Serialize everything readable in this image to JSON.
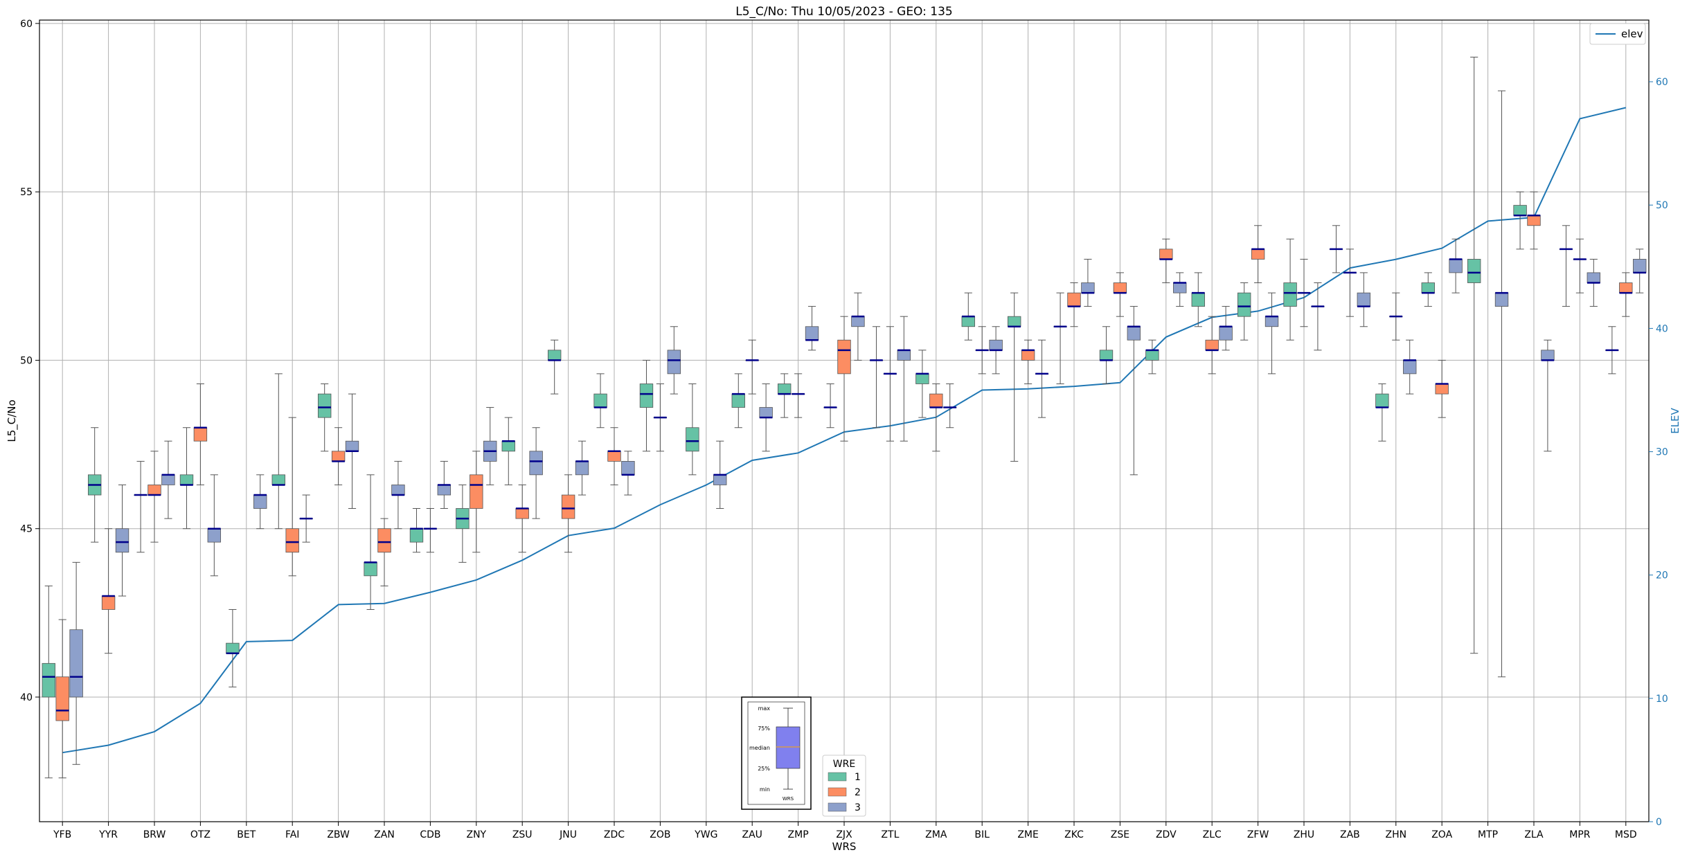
{
  "chart_data": {
    "type": "box+line",
    "title": "L5_C/No: Thu 10/05/2023 - GEO: 135",
    "xlabel": "WRS",
    "ylabel": "L5_C/No",
    "ylabel_right": "ELEV",
    "ylim": [
      36.3,
      60.1
    ],
    "ylim_right": [
      0,
      65
    ],
    "yticks": [
      40,
      45,
      50,
      55,
      60
    ],
    "yticks_right": [
      0,
      10,
      20,
      30,
      40,
      50,
      60
    ],
    "grid": true,
    "categories": [
      "YFB",
      "YYR",
      "BRW",
      "OTZ",
      "BET",
      "FAI",
      "ZBW",
      "ZAN",
      "CDB",
      "ZNY",
      "ZSU",
      "JNU",
      "ZDC",
      "ZOB",
      "YWG",
      "ZAU",
      "ZMP",
      "ZJX",
      "ZTL",
      "ZMA",
      "BIL",
      "ZME",
      "ZKC",
      "ZSE",
      "ZDV",
      "ZLC",
      "ZFW",
      "ZHU",
      "ZAB",
      "ZHN",
      "ZOA",
      "MTP",
      "ZLA",
      "MPR",
      "MSD"
    ],
    "elev": {
      "name": "elev",
      "color": "#1f77b4",
      "values": [
        5.6,
        6.2,
        7.3,
        9.6,
        14.6,
        14.7,
        17.6,
        17.7,
        18.6,
        19.6,
        21.2,
        23.2,
        23.8,
        25.7,
        27.3,
        29.3,
        29.9,
        31.6,
        32.1,
        32.8,
        35.0,
        35.1,
        35.3,
        35.6,
        39.3,
        40.9,
        41.4,
        42.5,
        44.9,
        45.6,
        46.5,
        48.7,
        49.0,
        57.0,
        57.9
      ]
    },
    "wre_colors": {
      "1": "#66c2a5",
      "2": "#fc8d62",
      "3": "#8da0cb"
    },
    "boxes": [
      {
        "station": "YFB",
        "wre": "1",
        "min": 37.6,
        "q1": 40.0,
        "median": 40.6,
        "q3": 41.0,
        "max": 43.3
      },
      {
        "station": "YFB",
        "wre": "2",
        "min": 37.6,
        "q1": 39.3,
        "median": 39.6,
        "q3": 40.6,
        "max": 42.3
      },
      {
        "station": "YFB",
        "wre": "3",
        "min": 38.0,
        "q1": 40.0,
        "median": 40.6,
        "q3": 42.0,
        "max": 44.0
      },
      {
        "station": "YYR",
        "wre": "1",
        "min": 44.6,
        "q1": 46.0,
        "median": 46.3,
        "q3": 46.6,
        "max": 48.0
      },
      {
        "station": "YYR",
        "wre": "2",
        "min": 41.3,
        "q1": 42.6,
        "median": 43.0,
        "q3": 43.0,
        "max": 45.0
      },
      {
        "station": "YYR",
        "wre": "3",
        "min": 43.0,
        "q1": 44.3,
        "median": 44.6,
        "q3": 45.0,
        "max": 46.3
      },
      {
        "station": "BRW",
        "wre": "1",
        "min": 44.3,
        "q1": 46.0,
        "median": 46.0,
        "q3": 46.0,
        "max": 47.0
      },
      {
        "station": "BRW",
        "wre": "2",
        "min": 44.6,
        "q1": 46.0,
        "median": 46.0,
        "q3": 46.3,
        "max": 47.3
      },
      {
        "station": "BRW",
        "wre": "3",
        "min": 45.3,
        "q1": 46.3,
        "median": 46.6,
        "q3": 46.6,
        "max": 47.6
      },
      {
        "station": "OTZ",
        "wre": "1",
        "min": 45.0,
        "q1": 46.3,
        "median": 46.3,
        "q3": 46.6,
        "max": 48.0
      },
      {
        "station": "OTZ",
        "wre": "2",
        "min": 46.3,
        "q1": 47.6,
        "median": 48.0,
        "q3": 48.0,
        "max": 49.3
      },
      {
        "station": "OTZ",
        "wre": "3",
        "min": 43.6,
        "q1": 44.6,
        "median": 45.0,
        "q3": 45.0,
        "max": 46.6
      },
      {
        "station": "BET",
        "wre": "1",
        "min": 40.3,
        "q1": 41.3,
        "median": 41.3,
        "q3": 41.6,
        "max": 42.6
      },
      {
        "station": "BET",
        "wre": "2",
        "min": null,
        "q1": null,
        "median": null,
        "q3": null,
        "max": null
      },
      {
        "station": "BET",
        "wre": "3",
        "min": 45.0,
        "q1": 45.6,
        "median": 46.0,
        "q3": 46.0,
        "max": 46.6
      },
      {
        "station": "FAI",
        "wre": "1",
        "min": 45.0,
        "q1": 46.3,
        "median": 46.3,
        "q3": 46.6,
        "max": 49.6
      },
      {
        "station": "FAI",
        "wre": "2",
        "min": 43.6,
        "q1": 44.3,
        "median": 44.6,
        "q3": 45.0,
        "max": 48.3
      },
      {
        "station": "FAI",
        "wre": "3",
        "min": 44.6,
        "q1": 45.3,
        "median": 45.3,
        "q3": 45.3,
        "max": 46.0
      },
      {
        "station": "ZBW",
        "wre": "1",
        "min": 47.3,
        "q1": 48.3,
        "median": 48.6,
        "q3": 49.0,
        "max": 49.3
      },
      {
        "station": "ZBW",
        "wre": "2",
        "min": 46.3,
        "q1": 47.0,
        "median": 47.0,
        "q3": 47.3,
        "max": 48.0
      },
      {
        "station": "ZBW",
        "wre": "3",
        "min": 45.6,
        "q1": 47.3,
        "median": 47.3,
        "q3": 47.6,
        "max": 49.0
      },
      {
        "station": "ZAN",
        "wre": "1",
        "min": 42.6,
        "q1": 43.6,
        "median": 44.0,
        "q3": 44.0,
        "max": 46.6
      },
      {
        "station": "ZAN",
        "wre": "2",
        "min": 43.3,
        "q1": 44.3,
        "median": 44.6,
        "q3": 45.0,
        "max": 45.3
      },
      {
        "station": "ZAN",
        "wre": "3",
        "min": 45.0,
        "q1": 46.0,
        "median": 46.0,
        "q3": 46.3,
        "max": 47.0
      },
      {
        "station": "CDB",
        "wre": "1",
        "min": 44.3,
        "q1": 44.6,
        "median": 45.0,
        "q3": 45.0,
        "max": 45.6
      },
      {
        "station": "CDB",
        "wre": "2",
        "min": 44.3,
        "q1": 45.0,
        "median": 45.0,
        "q3": 45.0,
        "max": 45.6
      },
      {
        "station": "CDB",
        "wre": "3",
        "min": 45.6,
        "q1": 46.0,
        "median": 46.3,
        "q3": 46.3,
        "max": 47.0
      },
      {
        "station": "ZNY",
        "wre": "1",
        "min": 44.0,
        "q1": 45.0,
        "median": 45.3,
        "q3": 45.6,
        "max": 46.3
      },
      {
        "station": "ZNY",
        "wre": "2",
        "min": 44.3,
        "q1": 45.6,
        "median": 46.3,
        "q3": 46.6,
        "max": 47.3
      },
      {
        "station": "ZNY",
        "wre": "3",
        "min": 46.3,
        "q1": 47.0,
        "median": 47.3,
        "q3": 47.6,
        "max": 48.6
      },
      {
        "station": "ZSU",
        "wre": "1",
        "min": 46.3,
        "q1": 47.3,
        "median": 47.6,
        "q3": 47.6,
        "max": 48.3
      },
      {
        "station": "ZSU",
        "wre": "2",
        "min": 44.3,
        "q1": 45.3,
        "median": 45.6,
        "q3": 45.6,
        "max": 46.3
      },
      {
        "station": "ZSU",
        "wre": "3",
        "min": 45.3,
        "q1": 46.6,
        "median": 47.0,
        "q3": 47.3,
        "max": 48.0
      },
      {
        "station": "JNU",
        "wre": "1",
        "min": 49.0,
        "q1": 50.0,
        "median": 50.0,
        "q3": 50.3,
        "max": 50.6
      },
      {
        "station": "JNU",
        "wre": "2",
        "min": 44.3,
        "q1": 45.3,
        "median": 45.6,
        "q3": 46.0,
        "max": 46.6
      },
      {
        "station": "JNU",
        "wre": "3",
        "min": 46.0,
        "q1": 46.6,
        "median": 47.0,
        "q3": 47.0,
        "max": 47.6
      },
      {
        "station": "ZDC",
        "wre": "1",
        "min": 48.0,
        "q1": 48.6,
        "median": 48.6,
        "q3": 49.0,
        "max": 49.6
      },
      {
        "station": "ZDC",
        "wre": "2",
        "min": 46.3,
        "q1": 47.0,
        "median": 47.3,
        "q3": 47.3,
        "max": 48.0
      },
      {
        "station": "ZDC",
        "wre": "3",
        "min": 46.0,
        "q1": 46.6,
        "median": 46.6,
        "q3": 47.0,
        "max": 47.3
      },
      {
        "station": "ZOB",
        "wre": "1",
        "min": 47.3,
        "q1": 48.6,
        "median": 49.0,
        "q3": 49.3,
        "max": 50.0
      },
      {
        "station": "ZOB",
        "wre": "2",
        "min": 47.3,
        "q1": 48.3,
        "median": 48.3,
        "q3": 48.3,
        "max": 49.3
      },
      {
        "station": "ZOB",
        "wre": "3",
        "min": 49.0,
        "q1": 49.6,
        "median": 50.0,
        "q3": 50.3,
        "max": 51.0
      },
      {
        "station": "YWG",
        "wre": "1",
        "min": 46.6,
        "q1": 47.3,
        "median": 47.6,
        "q3": 48.0,
        "max": 49.3
      },
      {
        "station": "YWG",
        "wre": "2",
        "min": null,
        "q1": null,
        "median": null,
        "q3": null,
        "max": null
      },
      {
        "station": "YWG",
        "wre": "3",
        "min": 45.6,
        "q1": 46.3,
        "median": 46.6,
        "q3": 46.6,
        "max": 47.6
      },
      {
        "station": "ZAU",
        "wre": "1",
        "min": 48.0,
        "q1": 48.6,
        "median": 49.0,
        "q3": 49.0,
        "max": 49.6
      },
      {
        "station": "ZAU",
        "wre": "2",
        "min": 49.0,
        "q1": 50.0,
        "median": 50.0,
        "q3": 50.0,
        "max": 50.6
      },
      {
        "station": "ZAU",
        "wre": "3",
        "min": 47.3,
        "q1": 48.3,
        "median": 48.3,
        "q3": 48.6,
        "max": 49.3
      },
      {
        "station": "ZMP",
        "wre": "1",
        "min": 48.3,
        "q1": 49.0,
        "median": 49.0,
        "q3": 49.3,
        "max": 49.6
      },
      {
        "station": "ZMP",
        "wre": "2",
        "min": 48.3,
        "q1": 49.0,
        "median": 49.0,
        "q3": 49.0,
        "max": 49.6
      },
      {
        "station": "ZMP",
        "wre": "3",
        "min": 50.3,
        "q1": 50.6,
        "median": 50.6,
        "q3": 51.0,
        "max": 51.6
      },
      {
        "station": "ZJX",
        "wre": "1",
        "min": 48.0,
        "q1": 48.6,
        "median": 48.6,
        "q3": 48.6,
        "max": 49.3
      },
      {
        "station": "ZJX",
        "wre": "2",
        "min": 47.6,
        "q1": 49.6,
        "median": 50.3,
        "q3": 50.6,
        "max": 51.3
      },
      {
        "station": "ZJX",
        "wre": "3",
        "min": 50.0,
        "q1": 51.0,
        "median": 51.3,
        "q3": 51.3,
        "max": 52.0
      },
      {
        "station": "ZTL",
        "wre": "1",
        "min": 48.0,
        "q1": 50.0,
        "median": 50.0,
        "q3": 50.0,
        "max": 51.0
      },
      {
        "station": "ZTL",
        "wre": "2",
        "min": 47.6,
        "q1": 49.6,
        "median": 49.6,
        "q3": 49.6,
        "max": 51.0
      },
      {
        "station": "ZTL",
        "wre": "3",
        "min": 47.6,
        "q1": 50.0,
        "median": 50.3,
        "q3": 50.3,
        "max": 51.3
      },
      {
        "station": "ZMA",
        "wre": "1",
        "min": 48.3,
        "q1": 49.3,
        "median": 49.6,
        "q3": 49.6,
        "max": 50.3
      },
      {
        "station": "ZMA",
        "wre": "2",
        "min": 47.3,
        "q1": 48.6,
        "median": 48.6,
        "q3": 49.0,
        "max": 49.3
      },
      {
        "station": "ZMA",
        "wre": "3",
        "min": 48.0,
        "q1": 48.6,
        "median": 48.6,
        "q3": 48.6,
        "max": 49.3
      },
      {
        "station": "BIL",
        "wre": "1",
        "min": 50.6,
        "q1": 51.0,
        "median": 51.3,
        "q3": 51.3,
        "max": 52.0
      },
      {
        "station": "BIL",
        "wre": "2",
        "min": 49.6,
        "q1": 50.3,
        "median": 50.3,
        "q3": 50.3,
        "max": 51.0
      },
      {
        "station": "BIL",
        "wre": "3",
        "min": 49.6,
        "q1": 50.3,
        "median": 50.3,
        "q3": 50.6,
        "max": 51.0
      },
      {
        "station": "ZME",
        "wre": "1",
        "min": 47.0,
        "q1": 51.0,
        "median": 51.0,
        "q3": 51.3,
        "max": 52.0
      },
      {
        "station": "ZME",
        "wre": "2",
        "min": 49.3,
        "q1": 50.0,
        "median": 50.3,
        "q3": 50.3,
        "max": 50.6
      },
      {
        "station": "ZME",
        "wre": "3",
        "min": 48.3,
        "q1": 49.6,
        "median": 49.6,
        "q3": 49.6,
        "max": 50.6
      },
      {
        "station": "ZKC",
        "wre": "1",
        "min": 49.3,
        "q1": 51.0,
        "median": 51.0,
        "q3": 51.0,
        "max": 52.0
      },
      {
        "station": "ZKC",
        "wre": "2",
        "min": 51.0,
        "q1": 51.6,
        "median": 51.6,
        "q3": 52.0,
        "max": 52.3
      },
      {
        "station": "ZKC",
        "wre": "3",
        "min": 51.6,
        "q1": 52.0,
        "median": 52.0,
        "q3": 52.3,
        "max": 53.0
      },
      {
        "station": "ZSE",
        "wre": "1",
        "min": 49.3,
        "q1": 50.0,
        "median": 50.0,
        "q3": 50.3,
        "max": 51.0
      },
      {
        "station": "ZSE",
        "wre": "2",
        "min": 51.3,
        "q1": 52.0,
        "median": 52.0,
        "q3": 52.3,
        "max": 52.6
      },
      {
        "station": "ZSE",
        "wre": "3",
        "min": 46.6,
        "q1": 50.6,
        "median": 51.0,
        "q3": 51.0,
        "max": 51.6
      },
      {
        "station": "ZDV",
        "wre": "1",
        "min": 49.6,
        "q1": 50.0,
        "median": 50.3,
        "q3": 50.3,
        "max": 50.6
      },
      {
        "station": "ZDV",
        "wre": "2",
        "min": 52.3,
        "q1": 53.0,
        "median": 53.0,
        "q3": 53.3,
        "max": 53.6
      },
      {
        "station": "ZDV",
        "wre": "3",
        "min": 51.6,
        "q1": 52.0,
        "median": 52.3,
        "q3": 52.3,
        "max": 52.6
      },
      {
        "station": "ZLC",
        "wre": "1",
        "min": 51.0,
        "q1": 51.6,
        "median": 52.0,
        "q3": 52.0,
        "max": 52.6
      },
      {
        "station": "ZLC",
        "wre": "2",
        "min": 49.6,
        "q1": 50.3,
        "median": 50.3,
        "q3": 50.6,
        "max": 51.3
      },
      {
        "station": "ZLC",
        "wre": "3",
        "min": 50.3,
        "q1": 50.6,
        "median": 51.0,
        "q3": 51.0,
        "max": 51.6
      },
      {
        "station": "ZFW",
        "wre": "1",
        "min": 50.6,
        "q1": 51.3,
        "median": 51.6,
        "q3": 52.0,
        "max": 52.3
      },
      {
        "station": "ZFW",
        "wre": "2",
        "min": 52.3,
        "q1": 53.0,
        "median": 53.3,
        "q3": 53.3,
        "max": 54.0
      },
      {
        "station": "ZFW",
        "wre": "3",
        "min": 49.6,
        "q1": 51.0,
        "median": 51.3,
        "q3": 51.3,
        "max": 52.0
      },
      {
        "station": "ZHU",
        "wre": "1",
        "min": 50.6,
        "q1": 51.6,
        "median": 52.0,
        "q3": 52.3,
        "max": 53.6
      },
      {
        "station": "ZHU",
        "wre": "2",
        "min": 51.0,
        "q1": 52.0,
        "median": 52.0,
        "q3": 52.0,
        "max": 53.0
      },
      {
        "station": "ZHU",
        "wre": "3",
        "min": 50.3,
        "q1": 51.6,
        "median": 51.6,
        "q3": 51.6,
        "max": 52.3
      },
      {
        "station": "ZAB",
        "wre": "1",
        "min": 52.6,
        "q1": 53.3,
        "median": 53.3,
        "q3": 53.3,
        "max": 54.0
      },
      {
        "station": "ZAB",
        "wre": "2",
        "min": 51.3,
        "q1": 52.6,
        "median": 52.6,
        "q3": 52.6,
        "max": 53.3
      },
      {
        "station": "ZAB",
        "wre": "3",
        "min": 51.0,
        "q1": 51.6,
        "median": 51.6,
        "q3": 52.0,
        "max": 52.6
      },
      {
        "station": "ZHN",
        "wre": "1",
        "min": 47.6,
        "q1": 48.6,
        "median": 48.6,
        "q3": 49.0,
        "max": 49.3
      },
      {
        "station": "ZHN",
        "wre": "2",
        "min": 50.6,
        "q1": 51.3,
        "median": 51.3,
        "q3": 51.3,
        "max": 52.0
      },
      {
        "station": "ZHN",
        "wre": "3",
        "min": 49.0,
        "q1": 49.6,
        "median": 50.0,
        "q3": 50.0,
        "max": 50.6
      },
      {
        "station": "ZOA",
        "wre": "1",
        "min": 51.6,
        "q1": 52.0,
        "median": 52.0,
        "q3": 52.3,
        "max": 52.6
      },
      {
        "station": "ZOA",
        "wre": "2",
        "min": 48.3,
        "q1": 49.0,
        "median": 49.3,
        "q3": 49.3,
        "max": 50.0
      },
      {
        "station": "ZOA",
        "wre": "3",
        "min": 52.0,
        "q1": 52.6,
        "median": 53.0,
        "q3": 53.0,
        "max": 53.6
      },
      {
        "station": "MTP",
        "wre": "1",
        "min": 41.3,
        "q1": 52.3,
        "median": 52.6,
        "q3": 53.0,
        "max": 59.0
      },
      {
        "station": "MTP",
        "wre": "2",
        "min": null,
        "q1": null,
        "median": null,
        "q3": null,
        "max": null
      },
      {
        "station": "MTP",
        "wre": "3",
        "min": 40.6,
        "q1": 51.6,
        "median": 52.0,
        "q3": 52.0,
        "max": 58.0
      },
      {
        "station": "ZLA",
        "wre": "1",
        "min": 53.3,
        "q1": 54.3,
        "median": 54.3,
        "q3": 54.6,
        "max": 55.0
      },
      {
        "station": "ZLA",
        "wre": "2",
        "min": 53.3,
        "q1": 54.0,
        "median": 54.3,
        "q3": 54.3,
        "max": 55.0
      },
      {
        "station": "ZLA",
        "wre": "3",
        "min": 47.3,
        "q1": 50.0,
        "median": 50.0,
        "q3": 50.3,
        "max": 50.6
      },
      {
        "station": "MPR",
        "wre": "1",
        "min": 51.6,
        "q1": 53.3,
        "median": 53.3,
        "q3": 53.3,
        "max": 54.0
      },
      {
        "station": "MPR",
        "wre": "2",
        "min": 52.0,
        "q1": 53.0,
        "median": 53.0,
        "q3": 53.0,
        "max": 53.6
      },
      {
        "station": "MPR",
        "wre": "3",
        "min": 51.6,
        "q1": 52.3,
        "median": 52.3,
        "q3": 52.6,
        "max": 53.0
      },
      {
        "station": "MSD",
        "wre": "1",
        "min": 49.6,
        "q1": 50.3,
        "median": 50.3,
        "q3": 50.3,
        "max": 51.0
      },
      {
        "station": "MSD",
        "wre": "2",
        "min": 51.3,
        "q1": 52.0,
        "median": 52.0,
        "q3": 52.3,
        "max": 52.6
      },
      {
        "station": "MSD",
        "wre": "3",
        "min": 52.0,
        "q1": 52.6,
        "median": 52.6,
        "q3": 53.0,
        "max": 53.3
      }
    ],
    "legend_top_right": {
      "placement": "top-right",
      "label": "elev"
    },
    "legend_wre": {
      "placement": "bottom-center",
      "title": "WRE",
      "entries": [
        "1",
        "2",
        "3"
      ]
    },
    "key_inset": {
      "placement": "bottom-center",
      "labels": [
        "max",
        "75%",
        "median",
        "25%",
        "min"
      ],
      "xlabel": "WRS",
      "color": "#8080ee"
    }
  }
}
